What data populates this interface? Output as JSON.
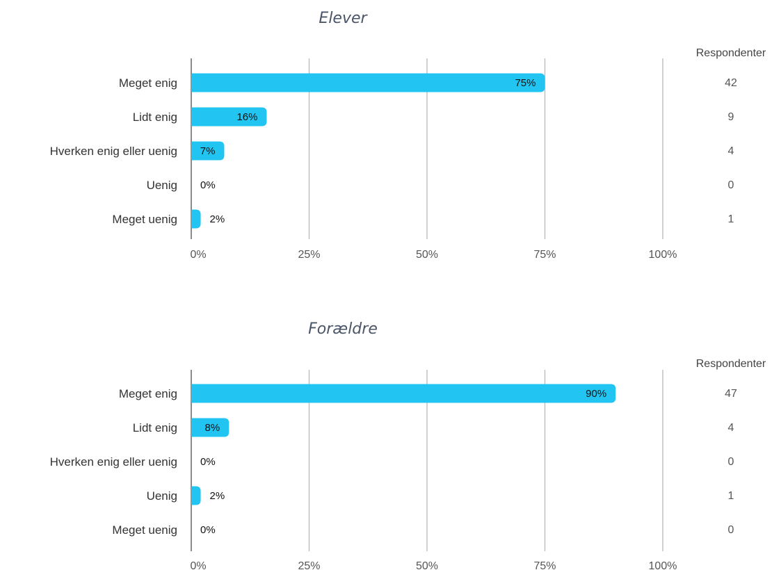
{
  "colors": {
    "bar": "#22c5f2",
    "grid": "#bdbdbd",
    "title": "#4a5668"
  },
  "chart_data": [
    {
      "type": "bar",
      "orientation": "horizontal",
      "title": "Elever",
      "categories": [
        "Meget enig",
        "Lidt enig",
        "Hverken enig eller uenig",
        "Uenig",
        "Meget uenig"
      ],
      "values": [
        75,
        16,
        7,
        0,
        2
      ],
      "value_labels": [
        "75%",
        "16%",
        "7%",
        "0%",
        "2%"
      ],
      "respondents_header": "Respondenter",
      "respondents": [
        "42",
        "9",
        "4",
        "0",
        "1"
      ],
      "xticks": [
        "0%",
        "25%",
        "50%",
        "75%",
        "100%"
      ],
      "xlim": [
        0,
        100
      ],
      "grid": true
    },
    {
      "type": "bar",
      "orientation": "horizontal",
      "title": "Forældre",
      "categories": [
        "Meget enig",
        "Lidt enig",
        "Hverken enig eller uenig",
        "Uenig",
        "Meget uenig"
      ],
      "values": [
        90,
        8,
        0,
        2,
        0
      ],
      "value_labels": [
        "90%",
        "8%",
        "0%",
        "2%",
        "0%"
      ],
      "respondents_header": "Respondenter",
      "respondents": [
        "47",
        "4",
        "0",
        "1",
        "0"
      ],
      "xticks": [
        "0%",
        "25%",
        "50%",
        "75%",
        "100%"
      ],
      "xlim": [
        0,
        100
      ],
      "grid": true
    }
  ]
}
